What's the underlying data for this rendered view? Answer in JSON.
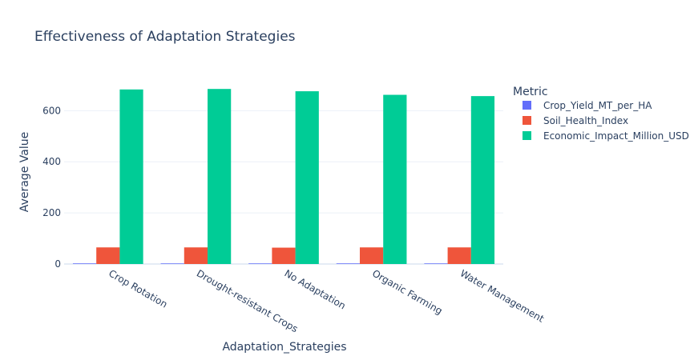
{
  "chart_data": {
    "type": "bar",
    "title": "Effectiveness of Adaptation Strategies",
    "xlabel": "Adaptation_Strategies",
    "ylabel": "Average Value",
    "categories": [
      "Crop Rotation",
      "Drought-resistant Crops",
      "No Adaptation",
      "Organic Farming",
      "Water Management"
    ],
    "series": [
      {
        "name": "Crop_Yield_MT_per_HA",
        "values": [
          2.3,
          2.2,
          2.2,
          2.3,
          2.2
        ],
        "color": "#636efa"
      },
      {
        "name": "Soil_Health_Index",
        "values": [
          65,
          65,
          64,
          65,
          65
        ],
        "color": "#ef553b"
      },
      {
        "name": "Economic_Impact_Million_USD",
        "values": [
          683,
          685,
          676,
          662,
          657
        ],
        "color": "#00cc96"
      }
    ],
    "legend_title": "Metric",
    "legend_position": "right",
    "ylim": [
      0,
      720
    ],
    "yticks": [
      0,
      200,
      400,
      600
    ],
    "grid": true
  }
}
